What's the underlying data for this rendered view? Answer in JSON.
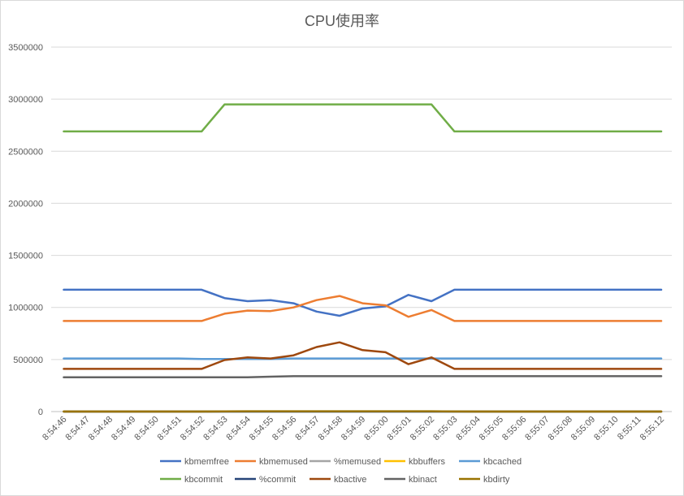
{
  "chart_data": {
    "type": "line",
    "title": "CPU使用率",
    "xlabel": "",
    "ylabel": "",
    "ylim": [
      0,
      3500000
    ],
    "yticks": [
      "0",
      "500000",
      "1000000",
      "1500000",
      "2000000",
      "2500000",
      "3000000",
      "3500000"
    ],
    "grid": true,
    "legend_position": "bottom",
    "categories": [
      "8:54:46",
      "8:54:47",
      "8:54:48",
      "8:54:49",
      "8:54:50",
      "8:54:51",
      "8:54:52",
      "8:54:53",
      "8:54:54",
      "8:54:55",
      "8:54:56",
      "8:54:57",
      "8:54:58",
      "8:54:59",
      "8:55:00",
      "8:55:01",
      "8:55:02",
      "8:55:03",
      "8:55:04",
      "8:55:05",
      "8:55:06",
      "8:55:07",
      "8:55:08",
      "8:55:09",
      "8:55:10",
      "8:55:11",
      "8:55:12"
    ],
    "series": [
      {
        "name": "kbmemfree",
        "color": "#4472C4",
        "values": [
          1170000,
          1170000,
          1170000,
          1170000,
          1170000,
          1170000,
          1170000,
          1090000,
          1060000,
          1070000,
          1040000,
          960000,
          920000,
          990000,
          1010000,
          1120000,
          1060000,
          1170000,
          1170000,
          1170000,
          1170000,
          1170000,
          1170000,
          1170000,
          1170000,
          1170000,
          1170000
        ]
      },
      {
        "name": "kbmemused",
        "color": "#ED7D31",
        "values": [
          870000,
          870000,
          870000,
          870000,
          870000,
          870000,
          870000,
          940000,
          970000,
          965000,
          1000000,
          1070000,
          1110000,
          1040000,
          1020000,
          910000,
          975000,
          870000,
          870000,
          870000,
          870000,
          870000,
          870000,
          870000,
          870000,
          870000,
          870000
        ]
      },
      {
        "name": "%memused",
        "color": "#A5A5A5",
        "values": [
          45,
          45,
          45,
          45,
          45,
          45,
          45,
          48,
          50,
          50,
          51,
          55,
          57,
          53,
          53,
          47,
          50,
          45,
          45,
          45,
          45,
          45,
          45,
          45,
          45,
          45,
          45
        ]
      },
      {
        "name": "kbbuffers",
        "color": "#FFC000",
        "values": [
          2000,
          2000,
          2000,
          2000,
          2000,
          2000,
          2000,
          2000,
          2000,
          2000,
          2000,
          2000,
          2000,
          2000,
          2000,
          2000,
          2000,
          2000,
          2000,
          2000,
          2000,
          2000,
          2000,
          2000,
          2000,
          2000,
          2000
        ]
      },
      {
        "name": "kbcached",
        "color": "#5B9BD5",
        "values": [
          510000,
          510000,
          510000,
          510000,
          510000,
          510000,
          505000,
          505000,
          505000,
          505000,
          510000,
          510000,
          510000,
          510000,
          510000,
          510000,
          510000,
          510000,
          510000,
          510000,
          510000,
          510000,
          510000,
          510000,
          510000,
          510000,
          510000
        ]
      },
      {
        "name": "kbcommit",
        "color": "#70AD47",
        "values": [
          2690000,
          2690000,
          2690000,
          2690000,
          2690000,
          2690000,
          2690000,
          2950000,
          2950000,
          2950000,
          2950000,
          2950000,
          2950000,
          2950000,
          2950000,
          2950000,
          2950000,
          2690000,
          2690000,
          2690000,
          2690000,
          2690000,
          2690000,
          2690000,
          2690000,
          2690000,
          2690000
        ]
      },
      {
        "name": "%commit",
        "color": "#264478",
        "values": [
          140,
          140,
          140,
          140,
          140,
          140,
          140,
          153,
          153,
          153,
          153,
          153,
          153,
          153,
          153,
          153,
          153,
          140,
          140,
          140,
          140,
          140,
          140,
          140,
          140,
          140,
          140
        ]
      },
      {
        "name": "kbactive",
        "color": "#9E480E",
        "values": [
          410000,
          410000,
          410000,
          410000,
          410000,
          410000,
          410000,
          495000,
          520000,
          510000,
          540000,
          620000,
          665000,
          590000,
          570000,
          455000,
          520000,
          410000,
          410000,
          410000,
          410000,
          410000,
          410000,
          410000,
          410000,
          410000,
          410000
        ]
      },
      {
        "name": "kbinact",
        "color": "#636363",
        "values": [
          330000,
          330000,
          330000,
          330000,
          330000,
          330000,
          330000,
          330000,
          330000,
          335000,
          340000,
          340000,
          340000,
          340000,
          340000,
          340000,
          340000,
          340000,
          340000,
          340000,
          340000,
          340000,
          340000,
          340000,
          340000,
          340000,
          340000
        ]
      },
      {
        "name": "kbdirty",
        "color": "#997300",
        "values": [
          100,
          100,
          100,
          100,
          100,
          100,
          100,
          2000,
          3000,
          3000,
          3000,
          3000,
          3000,
          3000,
          3000,
          3000,
          3000,
          500,
          100,
          100,
          100,
          100,
          100,
          100,
          100,
          100,
          100
        ]
      }
    ]
  }
}
